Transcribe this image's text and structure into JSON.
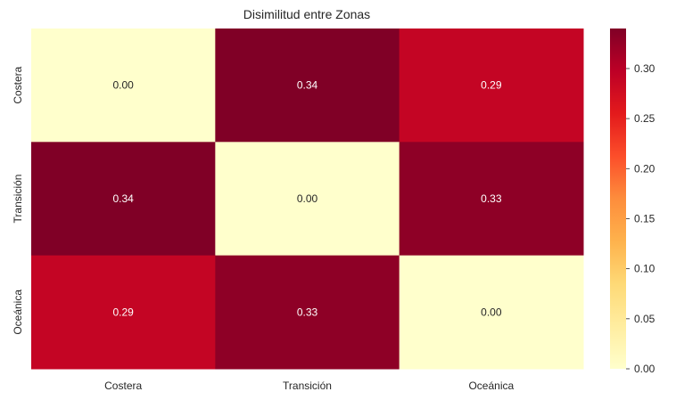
{
  "chart_data": {
    "type": "heatmap",
    "title": "Disimilitud entre Zonas",
    "xlabel": "",
    "ylabel": "",
    "x_categories": [
      "Costera",
      "Transición",
      "Oceánica"
    ],
    "y_categories": [
      "Costera",
      "Transición",
      "Oceánica"
    ],
    "values": [
      [
        0.0,
        0.34,
        0.29
      ],
      [
        0.34,
        0.0,
        0.33
      ],
      [
        0.29,
        0.33,
        0.0
      ]
    ],
    "annotations": [
      [
        "0.00",
        "0.34",
        "0.29"
      ],
      [
        "0.34",
        "0.00",
        "0.33"
      ],
      [
        "0.29",
        "0.33",
        "0.00"
      ]
    ],
    "colormap": "YlOrRd",
    "vmin": 0.0,
    "vmax": 0.34,
    "colorbar": {
      "ticks": [
        0.0,
        0.05,
        0.1,
        0.15,
        0.2,
        0.25,
        0.3
      ],
      "tick_labels": [
        "0.00",
        "0.05",
        "0.10",
        "0.15",
        "0.20",
        "0.25",
        "0.30"
      ]
    },
    "grid": false,
    "legend": "colorbar-right"
  }
}
